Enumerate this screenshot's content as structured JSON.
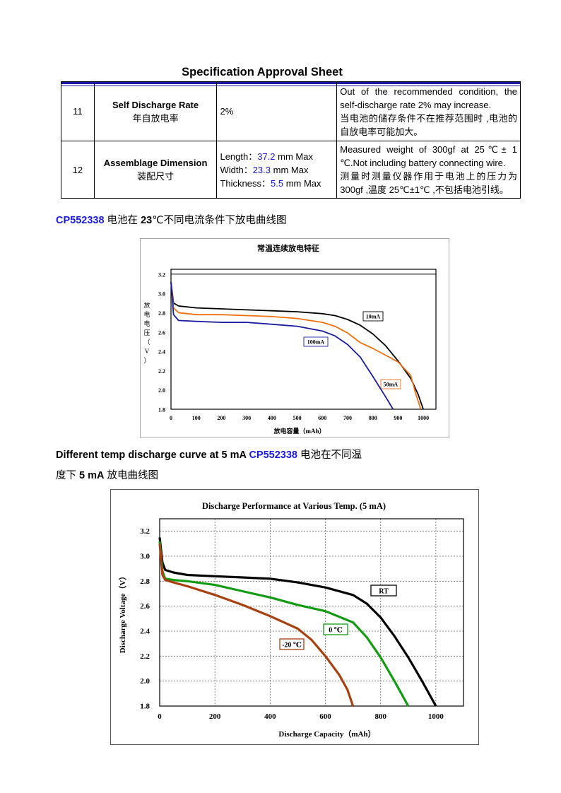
{
  "header": {
    "title": "Specification Approval Sheet"
  },
  "spec_rows": [
    {
      "no": "11",
      "name_en": "Self Discharge Rate",
      "name_cn": "年自放电率",
      "value": "2%",
      "note_en": "Out of the recommended condition, the self-discharge rate 2% may increase.",
      "note_cn": "当电池的储存条件不在推荐范围时 ,电池的自放电率可能加大。"
    },
    {
      "no": "12",
      "name_en": "Assemblage Dimension",
      "name_cn": "装配尺寸",
      "length_label": "Length：",
      "length_value": "37.2",
      "length_unit": " mm Max",
      "width_label": "Width：",
      "width_value": "23.3",
      "width_unit": " mm Max",
      "thickness_label": "Thickness：",
      "thickness_value": "5.5",
      "thickness_unit": " mm Max",
      "note_en": "Measured weight of 300gf at 25℃± 1 ℃.Not including battery connecting wire.",
      "note_cn": "测量时测量仪器作用于电池上的压力为300gf ,温度 25℃±1℃ ,不包括电池引线。"
    }
  ],
  "section1": {
    "model": "CP552338",
    "text_a": " 电池在 ",
    "temp": "23",
    "text_b": "℃不同电流条件下放电曲线图"
  },
  "section2": {
    "text_a": "Different temp discharge curve at 5 mA ",
    "model": "CP552338",
    "text_b": " 电池在不同温度下 ",
    "current": "5 mA",
    "text_c": " 放电曲线图"
  },
  "chart_data": [
    {
      "type": "line",
      "title": "常温连续放电特征",
      "xlabel": "放电容量（mAh）",
      "ylabel": "放电电压（V）",
      "xlim": [
        0,
        1050
      ],
      "ylim": [
        1.8,
        3.25
      ],
      "x_ticks": [
        "0",
        "100",
        "200",
        "300",
        "400",
        "500",
        "600",
        "700",
        "800",
        "900",
        "1000"
      ],
      "y_ticks": [
        "1.8",
        "2.0",
        "2.2",
        "2.4",
        "2.6",
        "2.8",
        "3.0",
        "3.2"
      ],
      "series": [
        {
          "name": "10mA",
          "color": "#000000",
          "x": [
            0,
            10,
            30,
            100,
            200,
            300,
            400,
            500,
            600,
            650,
            700,
            750,
            800,
            850,
            900,
            950,
            980,
            1000
          ],
          "y": [
            3.12,
            2.9,
            2.87,
            2.85,
            2.84,
            2.83,
            2.82,
            2.81,
            2.79,
            2.77,
            2.73,
            2.67,
            2.58,
            2.46,
            2.3,
            2.12,
            1.95,
            1.8
          ]
        },
        {
          "name": "50mA",
          "color": "#f07010",
          "x": [
            0,
            10,
            30,
            100,
            200,
            300,
            400,
            500,
            600,
            650,
            700,
            750,
            800,
            850,
            900,
            950,
            970,
            990
          ],
          "y": [
            3.12,
            2.85,
            2.8,
            2.78,
            2.78,
            2.77,
            2.76,
            2.74,
            2.7,
            2.66,
            2.59,
            2.49,
            2.43,
            2.36,
            2.29,
            2.15,
            1.96,
            1.8
          ]
        },
        {
          "name": "100mA",
          "color": "#1a1aa0",
          "x": [
            0,
            10,
            30,
            100,
            200,
            300,
            400,
            500,
            600,
            650,
            700,
            750,
            800,
            850,
            880
          ],
          "y": [
            3.12,
            2.78,
            2.72,
            2.71,
            2.7,
            2.7,
            2.68,
            2.66,
            2.61,
            2.56,
            2.47,
            2.34,
            2.14,
            1.93,
            1.8
          ]
        }
      ]
    },
    {
      "type": "line",
      "title": "Discharge Performance at Various Temp. (5 mA)",
      "xlabel": "Discharge Capacity（mAh）",
      "ylabel": "Discharge Voltage（V）",
      "xlim": [
        0,
        1100
      ],
      "ylim": [
        1.8,
        3.3
      ],
      "x_ticks": [
        "0",
        "200",
        "400",
        "600",
        "800",
        "1000"
      ],
      "y_ticks": [
        "1.8",
        "2.0",
        "2.2",
        "2.4",
        "2.6",
        "2.8",
        "3.0",
        "3.2"
      ],
      "series": [
        {
          "name": "RT",
          "color": "#000000",
          "x": [
            0,
            10,
            20,
            50,
            100,
            200,
            300,
            400,
            500,
            600,
            700,
            750,
            800,
            850,
            900,
            950,
            1000
          ],
          "y": [
            3.15,
            2.95,
            2.89,
            2.87,
            2.85,
            2.84,
            2.83,
            2.82,
            2.79,
            2.75,
            2.69,
            2.62,
            2.51,
            2.36,
            2.19,
            2.0,
            1.8
          ]
        },
        {
          "name": "0 ℃",
          "color": "#129a12",
          "x": [
            0,
            10,
            20,
            50,
            100,
            200,
            300,
            400,
            500,
            600,
            700,
            750,
            800,
            850,
            900
          ],
          "y": [
            3.12,
            2.88,
            2.82,
            2.81,
            2.8,
            2.77,
            2.72,
            2.67,
            2.61,
            2.56,
            2.47,
            2.35,
            2.19,
            2.0,
            1.8
          ]
        },
        {
          "name": "-20 ℃",
          "color": "#a84010",
          "x": [
            0,
            10,
            20,
            50,
            100,
            200,
            300,
            400,
            500,
            550,
            600,
            650,
            680,
            700
          ],
          "y": [
            3.1,
            2.85,
            2.81,
            2.79,
            2.76,
            2.69,
            2.61,
            2.52,
            2.42,
            2.33,
            2.2,
            2.05,
            1.93,
            1.8
          ]
        }
      ]
    }
  ]
}
